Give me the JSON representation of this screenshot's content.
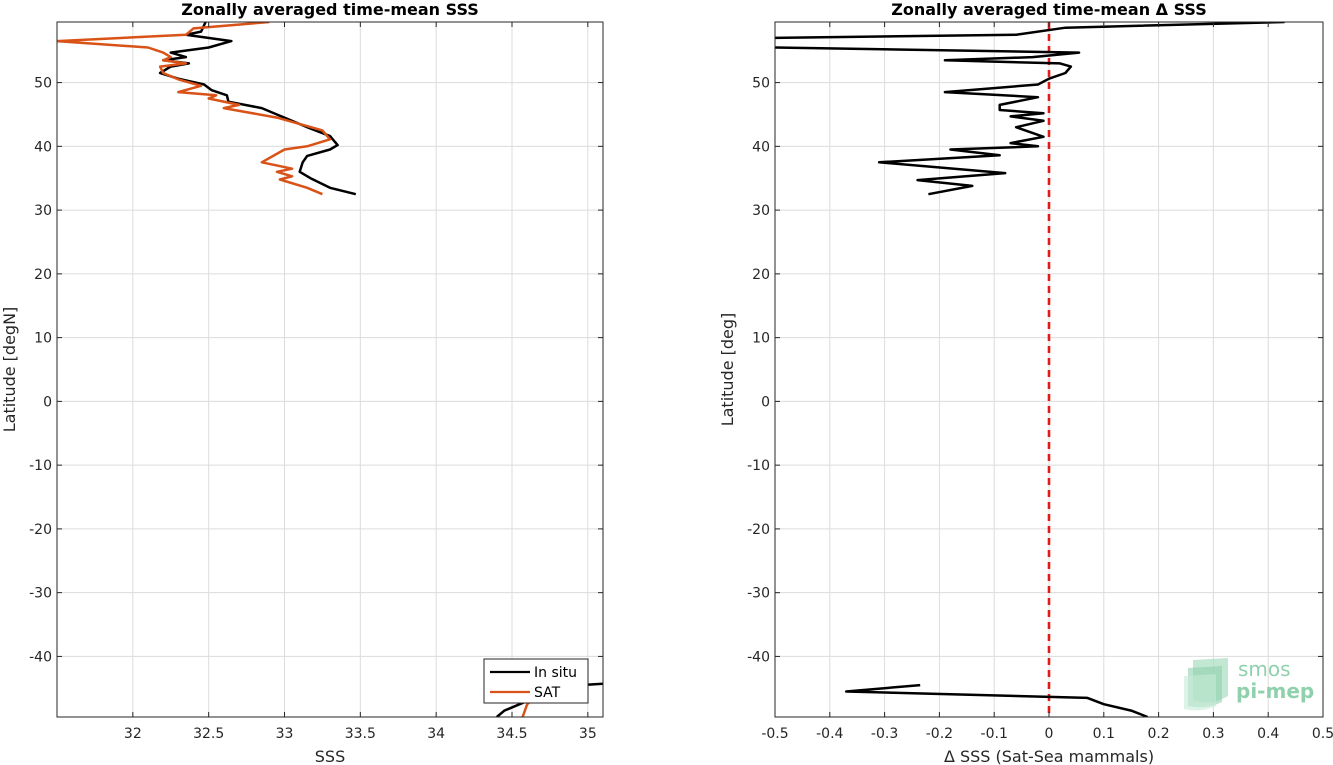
{
  "chart_data": [
    {
      "type": "line",
      "title": "Zonally averaged time-mean SSS",
      "xlabel": "SSS",
      "ylabel": "Latitude [degN]",
      "xlim": [
        31.5,
        35.1
      ],
      "ylim": [
        -49.5,
        59.5
      ],
      "xticks": [
        32,
        32.5,
        33,
        33.5,
        34,
        34.5,
        35
      ],
      "yticks": [
        -40,
        -30,
        -20,
        -10,
        0,
        10,
        20,
        30,
        40,
        50
      ],
      "grid": true,
      "legend_position": "bottom-right",
      "series": [
        {
          "name": "In situ",
          "color": "#000000",
          "segments": [
            [
              [
                32.48,
                59.5
              ],
              [
                32.45,
                58
              ],
              [
                32.35,
                57.5
              ],
              [
                32.65,
                56.5
              ],
              [
                32.5,
                55.5
              ],
              [
                32.25,
                54.7
              ],
              [
                32.35,
                54
              ],
              [
                32.2,
                53.5
              ],
              [
                32.37,
                53
              ],
              [
                32.25,
                52.5
              ],
              [
                32.18,
                51.5
              ],
              [
                32.3,
                50.6
              ],
              [
                32.47,
                49.7
              ],
              [
                32.52,
                48.8
              ],
              [
                32.62,
                48
              ],
              [
                32.63,
                47
              ],
              [
                32.85,
                46
              ],
              [
                32.95,
                45
              ],
              [
                33.15,
                43
              ],
              [
                33.3,
                41.6
              ],
              [
                33.35,
                40.2
              ],
              [
                33.3,
                39.5
              ],
              [
                33.15,
                38.5
              ],
              [
                33.12,
                37.5
              ],
              [
                33.1,
                36
              ],
              [
                33.18,
                34.9
              ],
              [
                33.3,
                33.5
              ],
              [
                33.47,
                32.5
              ]
            ],
            [
              [
                35.1,
                -44.3
              ],
              [
                34.95,
                -44.5
              ],
              [
                34.7,
                -45.5
              ],
              [
                34.58,
                -47.2
              ],
              [
                34.45,
                -48.5
              ],
              [
                34.4,
                -49.5
              ]
            ]
          ]
        },
        {
          "name": "SAT",
          "color": "#d95319",
          "segments": [
            [
              [
                32.9,
                59.5
              ],
              [
                32.4,
                58.5
              ],
              [
                32.35,
                57.5
              ],
              [
                31.5,
                56.5
              ],
              [
                32.1,
                55.5
              ],
              [
                32.2,
                54.7
              ],
              [
                32.25,
                54
              ],
              [
                32.2,
                53.5
              ],
              [
                32.35,
                53
              ],
              [
                32.18,
                52.5
              ],
              [
                32.2,
                51.5
              ],
              [
                32.3,
                50.5
              ],
              [
                32.45,
                49.5
              ],
              [
                32.3,
                48.5
              ],
              [
                32.55,
                48
              ],
              [
                32.5,
                47.5
              ],
              [
                32.7,
                46.5
              ],
              [
                32.6,
                46
              ],
              [
                32.95,
                44.5
              ],
              [
                33.25,
                42.5
              ],
              [
                33.3,
                41.1
              ],
              [
                33.15,
                40
              ],
              [
                33.0,
                39.5
              ],
              [
                32.85,
                37.5
              ],
              [
                33.05,
                36.5
              ],
              [
                32.95,
                36
              ],
              [
                33.05,
                35.3
              ],
              [
                32.97,
                34.8
              ],
              [
                33.15,
                33.5
              ],
              [
                33.25,
                32.5
              ]
            ],
            [
              [
                34.7,
                -45.6
              ],
              [
                34.6,
                -47.5
              ],
              [
                34.57,
                -49.5
              ]
            ]
          ]
        }
      ]
    },
    {
      "type": "line",
      "title": "Zonally averaged time-mean Δ SSS",
      "xlabel": "Δ SSS (Sat-Sea mammals)",
      "ylabel": "Latitude [deg]",
      "xlim": [
        -0.5,
        0.5
      ],
      "ylim": [
        -49.5,
        59.5
      ],
      "xticks": [
        -0.5,
        -0.4,
        -0.3,
        -0.2,
        -0.1,
        0,
        0.1,
        0.2,
        0.3,
        0.4,
        0.5
      ],
      "yticks": [
        -40,
        -30,
        -20,
        -10,
        0,
        10,
        20,
        30,
        40,
        50
      ],
      "grid": true,
      "reference_line": {
        "x": 0,
        "color": "#e21a1a",
        "style": "dashed"
      },
      "series": [
        {
          "color": "#000000",
          "segments": [
            [
              [
                0.43,
                59.5
              ],
              [
                0.03,
                58.6
              ],
              [
                -0.06,
                57.5
              ],
              [
                -0.5,
                57.0
              ]
            ],
            [
              [
                -0.5,
                55.5
              ],
              [
                0.055,
                54.7
              ],
              [
                -0.03,
                54
              ],
              [
                -0.19,
                53.5
              ],
              [
                0.02,
                53
              ],
              [
                0.04,
                52.5
              ],
              [
                0.03,
                51.5
              ],
              [
                0.0,
                50.6
              ],
              [
                -0.02,
                49.7
              ],
              [
                -0.19,
                48.5
              ],
              [
                -0.02,
                47.7
              ],
              [
                -0.09,
                46.5
              ],
              [
                -0.09,
                45.7
              ],
              [
                -0.01,
                45.2
              ],
              [
                -0.07,
                44.7
              ],
              [
                -0.01,
                44
              ],
              [
                -0.06,
                43
              ],
              [
                -0.01,
                41.5
              ],
              [
                -0.07,
                40.5
              ],
              [
                -0.02,
                40
              ],
              [
                -0.18,
                39.5
              ],
              [
                -0.09,
                38.6
              ],
              [
                -0.31,
                37.5
              ],
              [
                -0.08,
                35.8
              ],
              [
                -0.24,
                34.7
              ],
              [
                -0.14,
                33.8
              ],
              [
                -0.22,
                32.5
              ]
            ],
            [
              [
                -0.235,
                -44.5
              ],
              [
                -0.37,
                -45.5
              ],
              [
                0.07,
                -46.5
              ],
              [
                0.1,
                -47.5
              ],
              [
                0.15,
                -48.5
              ],
              [
                0.18,
                -49.5
              ]
            ]
          ]
        }
      ]
    }
  ],
  "legend": {
    "items": [
      {
        "label": "In situ",
        "color": "#000000"
      },
      {
        "label": "SAT",
        "color": "#d95319"
      }
    ]
  },
  "logo": {
    "line1": "smos",
    "line2": "pi-mep"
  }
}
